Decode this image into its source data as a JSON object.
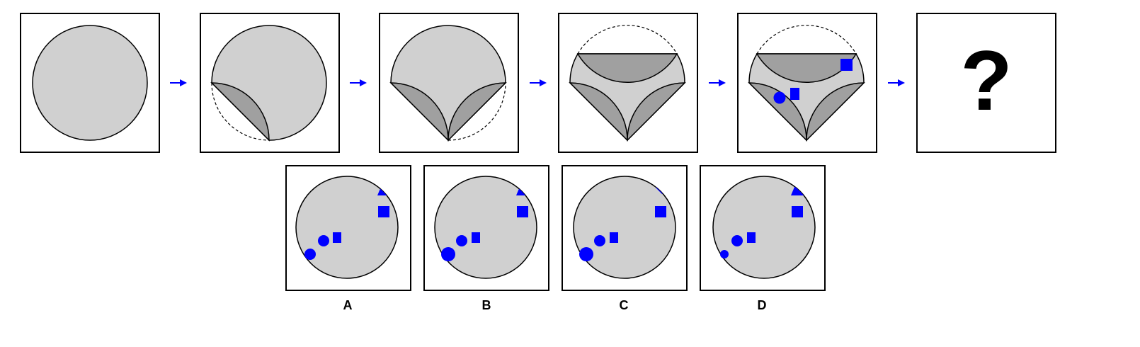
{
  "sequence": {
    "question_mark": "?"
  },
  "options": [
    {
      "label": "A"
    },
    {
      "label": "B"
    },
    {
      "label": "C"
    },
    {
      "label": "D"
    }
  ],
  "colors": {
    "paper": "#d0d0d0",
    "fold": "#a0a0a0",
    "marks": "#0000ff",
    "outline": "#000000"
  }
}
